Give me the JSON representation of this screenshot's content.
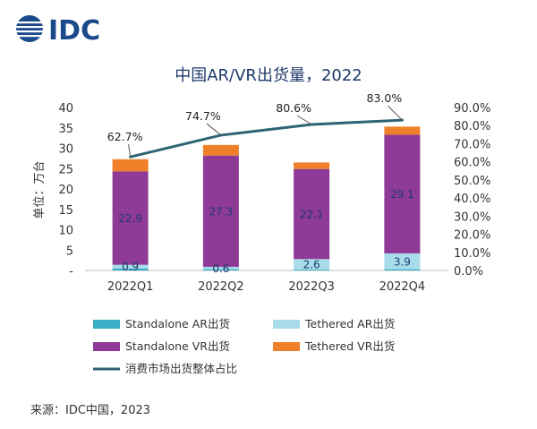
{
  "logo": {
    "text": "IDC"
  },
  "source": "来源：IDC中国，2023",
  "colors": {
    "standalone_ar": "#3aaec5",
    "tethered_ar": "#a8dcea",
    "standalone_vr": "#8e3a96",
    "tethered_vr": "#f07f2a",
    "consumer_share_line": "#2e6474",
    "title": "#1f3a6b"
  },
  "chart_data": {
    "type": "bar",
    "title": "中国AR/VR出货量，2022",
    "ylabel": "单位：万台",
    "ylim": [
      0,
      40
    ],
    "y_ticks": [
      "-",
      "5",
      "10",
      "15",
      "20",
      "25",
      "30",
      "35",
      "40"
    ],
    "y2lim": [
      0,
      90
    ],
    "y2_ticks": [
      "0.0%",
      "10.0%",
      "20.0%",
      "30.0%",
      "40.0%",
      "50.0%",
      "60.0%",
      "70.0%",
      "80.0%",
      "90.0%"
    ],
    "categories": [
      "2022Q1",
      "2022Q2",
      "2022Q3",
      "2022Q4"
    ],
    "stacked": true,
    "series": [
      {
        "name": "Standalone AR出货",
        "values": [
          0.5,
          0.3,
          0.2,
          0.3
        ]
      },
      {
        "name": "Tethered AR出货",
        "values": [
          0.9,
          0.6,
          2.6,
          3.9
        ]
      },
      {
        "name": "Standalone VR出货",
        "values": [
          22.9,
          27.3,
          22.1,
          29.1
        ]
      },
      {
        "name": "Tethered VR出货",
        "values": [
          3.0,
          2.6,
          1.6,
          2.0
        ]
      }
    ],
    "bar_labels": [
      {
        "series_index": 1,
        "labels": [
          "0.9",
          "0.6",
          "2.6",
          "3.9"
        ]
      },
      {
        "series_index": 2,
        "labels": [
          "22.9",
          "27.3",
          "22.1",
          "29.1"
        ]
      }
    ],
    "line": {
      "name": "消费市场出货整体占比",
      "axis": "secondary",
      "values": [
        62.7,
        74.7,
        80.6,
        83.0
      ],
      "labels": [
        "62.7%",
        "74.7%",
        "80.6%",
        "83.0%"
      ]
    },
    "legend": {
      "placement": "bottom",
      "items": [
        {
          "label": "Standalone AR出货",
          "kind": "bar",
          "color_key": "standalone_ar"
        },
        {
          "label": "Tethered AR出货",
          "kind": "bar",
          "color_key": "tethered_ar"
        },
        {
          "label": "Standalone VR出货",
          "kind": "bar",
          "color_key": "standalone_vr"
        },
        {
          "label": "Tethered VR出货",
          "kind": "bar",
          "color_key": "tethered_vr"
        },
        {
          "label": "消费市场出货整体占比",
          "kind": "line",
          "color_key": "consumer_share_line"
        }
      ]
    }
  }
}
